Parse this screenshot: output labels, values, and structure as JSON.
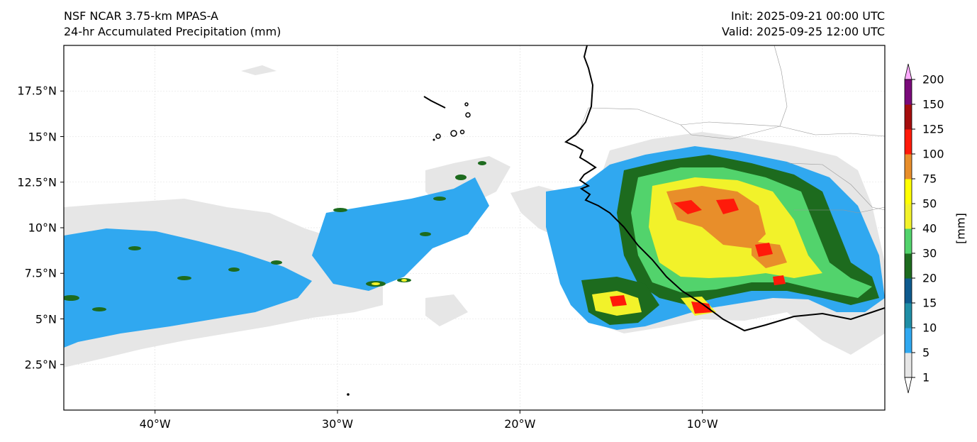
{
  "header": {
    "model": "NSF NCAR 3.75-km MPAS-A",
    "field": "24-hr Accumulated Precipitation (mm)",
    "init": "Init: 2025-09-21 00:00 UTC",
    "valid": "Valid: 2025-09-25 12:00 UTC"
  },
  "map": {
    "lon_range": [
      -45,
      0
    ],
    "lat_range": [
      0,
      20
    ],
    "x_ticks": [
      {
        "lon": -40,
        "label": "40°W"
      },
      {
        "lon": -30,
        "label": "30°W"
      },
      {
        "lon": -20,
        "label": "20°W"
      },
      {
        "lon": -10,
        "label": "10°W"
      }
    ],
    "y_ticks": [
      {
        "lat": 17.5,
        "label": "17.5°N"
      },
      {
        "lat": 15,
        "label": "15°N"
      },
      {
        "lat": 12.5,
        "label": "12.5°N"
      },
      {
        "lat": 10,
        "label": "10°N"
      },
      {
        "lat": 7.5,
        "label": "7.5°N"
      },
      {
        "lat": 5,
        "label": "5°N"
      },
      {
        "lat": 2.5,
        "label": "2.5°N"
      }
    ],
    "grid": true
  },
  "colorbar": {
    "units": "[mm]",
    "levels": [
      "1",
      "5",
      "10",
      "15",
      "20",
      "30",
      "40",
      "50",
      "75",
      "100",
      "125",
      "150",
      "200"
    ],
    "colors": [
      "#e6e6e6",
      "#30a8f0",
      "#1f8ea6",
      "#0e5a8e",
      "#1d6b1e",
      "#52d36c",
      "#f2f22a",
      "#ffff00",
      "#e88e2a",
      "#ff1a0a",
      "#a50d0d",
      "#7a0a7a",
      "#ff5cff"
    ],
    "over_color": "#ffaaff",
    "under_color": "#ffffff"
  }
}
